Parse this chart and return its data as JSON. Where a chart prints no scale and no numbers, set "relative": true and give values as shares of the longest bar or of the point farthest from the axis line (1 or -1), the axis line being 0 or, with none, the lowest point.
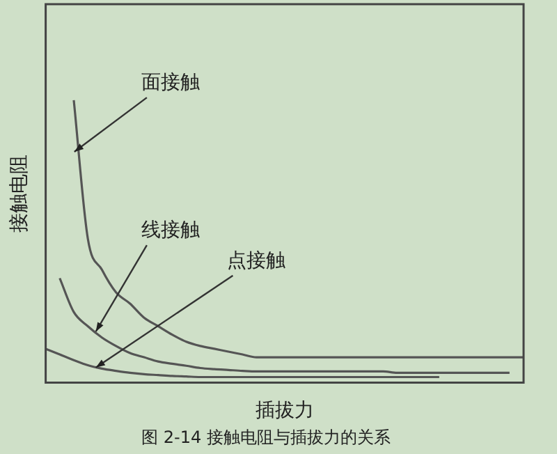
{
  "chart_data": {
    "type": "line",
    "relative": true,
    "title": "图 2-14 接触电阻与插拔力的关系",
    "xlabel": "插拔力",
    "ylabel": "接触电阻",
    "legend": false,
    "marker": "none",
    "grid": false,
    "categories": [
      null,
      null,
      null,
      null,
      null,
      null,
      null,
      null,
      null,
      null,
      null,
      null,
      null,
      null,
      null,
      null,
      null,
      null,
      null,
      null,
      null,
      null,
      null,
      null,
      null,
      null,
      null,
      null,
      null,
      null,
      null,
      null,
      null,
      null,
      null
    ],
    "series": [
      {
        "name": "面接触",
        "color": "#555555",
        "values": [
          null,
          null,
          1.0,
          0.51,
          0.4,
          0.32,
          0.28,
          0.23,
          0.2,
          0.17,
          0.145,
          0.13,
          0.12,
          0.11,
          0.1,
          0.09,
          0.09,
          0.09,
          0.09,
          0.09,
          0.09,
          0.09,
          0.09,
          0.09,
          0.09,
          0.09,
          0.09,
          0.09,
          0.09,
          0.09,
          0.09,
          0.09,
          0.09,
          0.09,
          0.09
        ]
      },
      {
        "name": "线接触",
        "color": "#555555",
        "values": [
          null,
          0.37,
          0.25,
          0.2,
          0.16,
          0.13,
          0.105,
          0.09,
          0.075,
          0.067,
          0.06,
          0.052,
          0.048,
          0.045,
          0.042,
          0.04,
          0.04,
          0.04,
          0.04,
          0.04,
          0.04,
          0.04,
          0.04,
          0.04,
          0.04,
          0.035,
          0.035,
          0.035,
          0.035,
          0.035,
          0.035,
          0.035,
          0.035,
          0.035,
          null
        ]
      },
      {
        "name": "点接触",
        "color": "#555555",
        "values": [
          0.12,
          0.1,
          0.08,
          0.062,
          0.05,
          0.042,
          0.035,
          0.03,
          0.027,
          0.024,
          0.022,
          0.02,
          0.02,
          0.02,
          0.02,
          0.02,
          0.02,
          0.02,
          0.02,
          0.02,
          0.02,
          0.02,
          0.02,
          0.02,
          0.02,
          0.02,
          0.02,
          0.02,
          0.02,
          null,
          null,
          null,
          null,
          null,
          null
        ]
      }
    ]
  }
}
